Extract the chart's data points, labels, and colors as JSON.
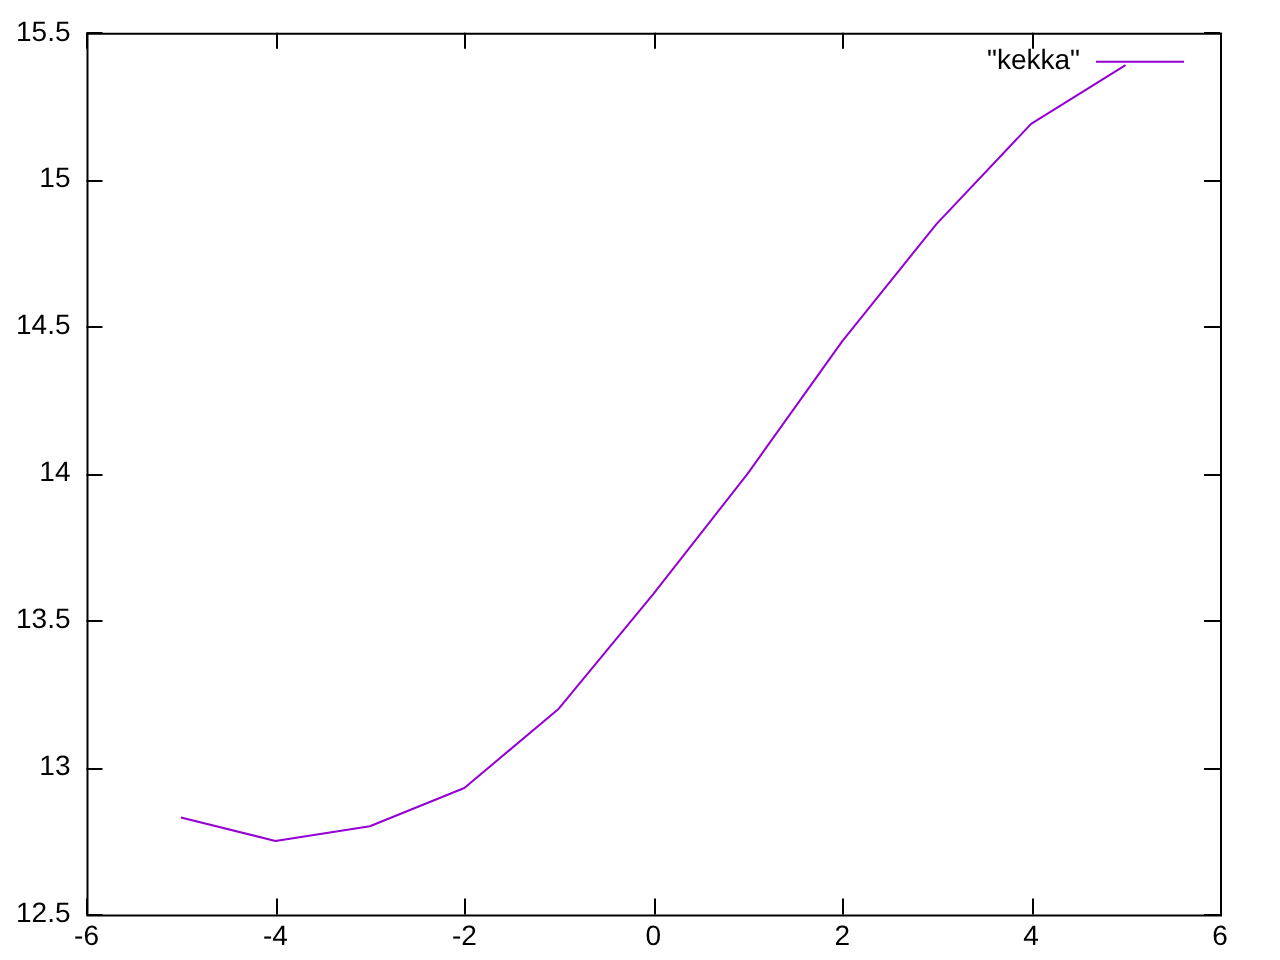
{
  "chart_data": {
    "type": "line",
    "x": [
      -5,
      -4,
      -3,
      -2,
      -1,
      0,
      1,
      2,
      3,
      4,
      5
    ],
    "series": [
      {
        "name": "\"kekka\"",
        "color": "#9400d3",
        "values": [
          12.83,
          12.75,
          12.8,
          12.93,
          13.2,
          13.59,
          14.0,
          14.45,
          14.85,
          15.19,
          15.39
        ]
      }
    ],
    "xlim": [
      -6,
      6
    ],
    "xticks": [
      -6,
      -4,
      -2,
      0,
      2,
      4,
      6
    ],
    "ylim": [
      12.5,
      15.5
    ],
    "yticks": [
      12.5,
      13,
      13.5,
      14,
      14.5,
      15,
      15.5
    ],
    "grid": false,
    "legend": "top right",
    "marker": "none",
    "line_style": "solid"
  }
}
